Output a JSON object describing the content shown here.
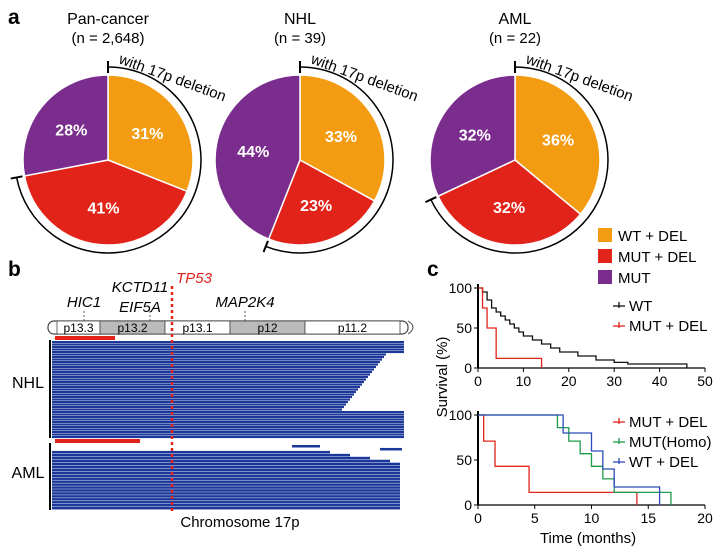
{
  "panel_a": {
    "label": "a",
    "arc_label": "with 17p deletion",
    "legend": [
      {
        "label": "WT + DEL",
        "color": "#f39c12"
      },
      {
        "label": "MUT + DEL",
        "color": "#e2231a"
      },
      {
        "label": "MUT",
        "color": "#7b2d8e"
      }
    ]
  },
  "panel_b": {
    "label": "b",
    "gene_labels": [
      "HIC1",
      "KCTD11",
      "EIF5A",
      "TP53",
      "MAP2K4"
    ],
    "bands": [
      "p13.3",
      "p13.2",
      "p13.1",
      "p12",
      "p11.2"
    ],
    "row_labels": [
      "NHL",
      "AML"
    ],
    "xlabel": "Chromosome 17p",
    "bar_color": "#1a3799",
    "highlight_color": "#e2231a"
  },
  "panel_c": {
    "label": "c",
    "ylabel": "Survival (%)",
    "xlabel": "Time (months)"
  },
  "chart_data": [
    {
      "type": "pie",
      "title": "Pan-cancer",
      "subtitle": "(n = 2,648)",
      "categories": [
        "WT + DEL",
        "MUT + DEL",
        "MUT"
      ],
      "values": [
        31,
        41,
        28
      ],
      "labels": [
        "31%",
        "41%",
        "28%"
      ]
    },
    {
      "type": "pie",
      "title": "NHL",
      "subtitle": "(n = 39)",
      "categories": [
        "WT + DEL",
        "MUT + DEL",
        "MUT"
      ],
      "values": [
        33,
        23,
        44
      ],
      "labels": [
        "33%",
        "23%",
        "44%"
      ]
    },
    {
      "type": "pie",
      "title": "AML",
      "subtitle": "(n = 22)",
      "categories": [
        "WT + DEL",
        "MUT + DEL",
        "MUT"
      ],
      "values": [
        36,
        32,
        32
      ],
      "labels": [
        "36%",
        "32%",
        "32%"
      ]
    },
    {
      "type": "line",
      "subtype": "kaplan-meier",
      "xlim": [
        0,
        50
      ],
      "ylim": [
        0,
        100
      ],
      "xticks": [
        0,
        10,
        20,
        30,
        40,
        50
      ],
      "yticks": [
        0,
        50,
        100
      ],
      "series": [
        {
          "name": "WT",
          "color": "#111111",
          "x": [
            0,
            1,
            2,
            3,
            4,
            5,
            6,
            7,
            8,
            9,
            10,
            12,
            14,
            16,
            18,
            22,
            26,
            30,
            33,
            46
          ],
          "y": [
            100,
            95,
            85,
            75,
            70,
            65,
            60,
            55,
            50,
            45,
            40,
            35,
            30,
            25,
            20,
            15,
            10,
            7,
            5,
            0
          ]
        },
        {
          "name": "MUT + DEL",
          "color": "#e2231a",
          "x": [
            0,
            1,
            2,
            4,
            14
          ],
          "y": [
            100,
            75,
            50,
            12,
            0
          ]
        }
      ]
    },
    {
      "type": "line",
      "subtype": "kaplan-meier",
      "xlim": [
        0,
        20
      ],
      "ylim": [
        0,
        100
      ],
      "xticks": [
        0,
        5,
        10,
        15,
        20
      ],
      "yticks": [
        0,
        50,
        100
      ],
      "series": [
        {
          "name": "MUT + DEL",
          "color": "#e2231a",
          "x": [
            0,
            0.5,
            1.5,
            4.5,
            14
          ],
          "y": [
            100,
            71,
            43,
            14,
            0
          ]
        },
        {
          "name": "MUT(Homo)",
          "color": "#1e9a4a",
          "x": [
            0,
            3,
            7,
            8,
            9,
            10,
            11,
            12,
            15,
            17
          ],
          "y": [
            100,
            100,
            86,
            71,
            57,
            43,
            29,
            14,
            14,
            0
          ]
        },
        {
          "name": "WT + DEL",
          "color": "#2b4ab8",
          "x": [
            0,
            5,
            7.5,
            10,
            11,
            12,
            16
          ],
          "y": [
            100,
            100,
            80,
            60,
            40,
            20,
            0
          ]
        }
      ]
    }
  ]
}
